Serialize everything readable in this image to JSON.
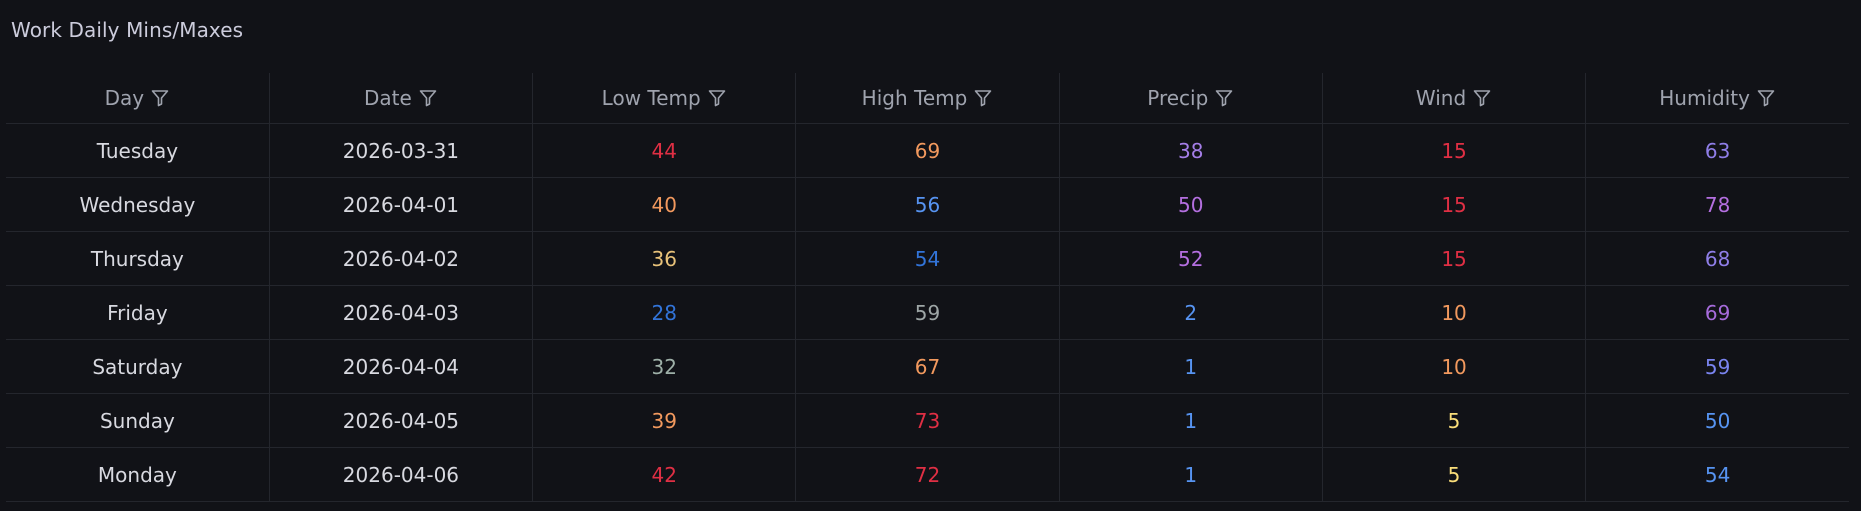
{
  "panel": {
    "title": "Work Daily Mins/Maxes"
  },
  "table": {
    "columns": [
      "Day",
      "Date",
      "Low Temp",
      "High Temp",
      "Precip",
      "Wind",
      "Humidity"
    ],
    "rows": [
      {
        "day": "Tuesday",
        "date": "2026-03-31",
        "low": "44",
        "high": "69",
        "precip": "38",
        "wind": "15",
        "humidity": "63"
      },
      {
        "day": "Wednesday",
        "date": "2026-04-01",
        "low": "40",
        "high": "56",
        "precip": "50",
        "wind": "15",
        "humidity": "78"
      },
      {
        "day": "Thursday",
        "date": "2026-04-02",
        "low": "36",
        "high": "54",
        "precip": "52",
        "wind": "15",
        "humidity": "68"
      },
      {
        "day": "Friday",
        "date": "2026-04-03",
        "low": "28",
        "high": "59",
        "precip": "2",
        "wind": "10",
        "humidity": "69"
      },
      {
        "day": "Saturday",
        "date": "2026-04-04",
        "low": "32",
        "high": "67",
        "precip": "1",
        "wind": "10",
        "humidity": "59"
      },
      {
        "day": "Sunday",
        "date": "2026-04-05",
        "low": "39",
        "high": "73",
        "precip": "1",
        "wind": "5",
        "humidity": "50"
      },
      {
        "day": "Monday",
        "date": "2026-04-06",
        "low": "42",
        "high": "72",
        "precip": "1",
        "wind": "5",
        "humidity": "54"
      }
    ]
  },
  "colors": {
    "background": "#111217",
    "text": "#d8d9e0",
    "header_text": "#9fa3ae",
    "red": "#e02f44",
    "orange": "#f2995e",
    "yellow": "#f2cc0c",
    "light_yellow": "#fade7a",
    "blue": "#3274d9",
    "light_blue": "#5794f2",
    "purple": "#a352cc",
    "light_purple": "#b877d9",
    "slate": "#8ab8b0",
    "periwinkle": "#8f79e8",
    "violet": "#a66bdb"
  },
  "cell_colors": [
    {
      "low": "#e02f44",
      "high": "#f2995e",
      "precip": "#a57ee8",
      "wind": "#e02f44",
      "humidity": "#8f7ee8"
    },
    {
      "low": "#f2995e",
      "high": "#5794f2",
      "precip": "#b46fe0",
      "wind": "#e02f44",
      "humidity": "#b46fe0"
    },
    {
      "low": "#e8c27a",
      "high": "#3274d9",
      "precip": "#b46fe0",
      "wind": "#e02f44",
      "humidity": "#8f7ee8"
    },
    {
      "low": "#3274d9",
      "high": "#9ea6a6",
      "precip": "#5794f2",
      "wind": "#f2995e",
      "humidity": "#a66bdb"
    },
    {
      "low": "#9eb0a8",
      "high": "#f2995e",
      "precip": "#5794f2",
      "wind": "#f2995e",
      "humidity": "#7a84f0"
    },
    {
      "low": "#f2995e",
      "high": "#e02f44",
      "precip": "#5794f2",
      "wind": "#fade7a",
      "humidity": "#5794f2"
    },
    {
      "low": "#e02f44",
      "high": "#e02f44",
      "precip": "#5794f2",
      "wind": "#fade7a",
      "humidity": "#5794f2"
    }
  ],
  "icons": {
    "header_filter": "filter-icon"
  }
}
